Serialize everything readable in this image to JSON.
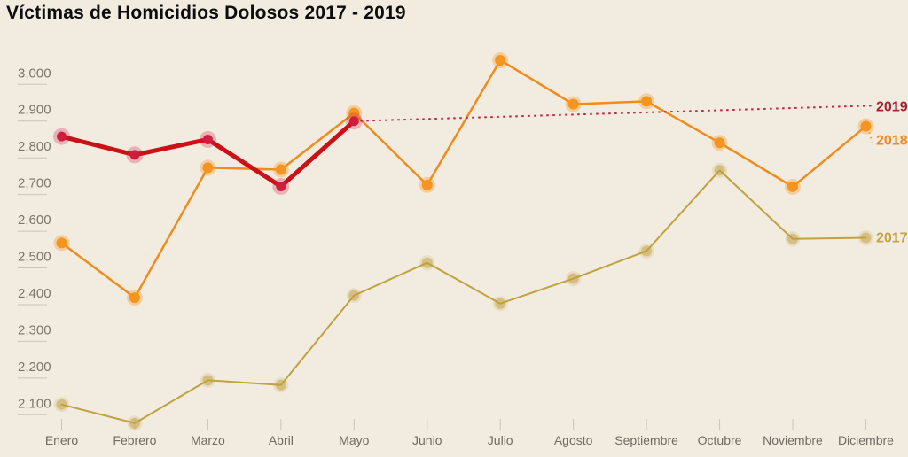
{
  "title": "Víctimas de Homicidios Dolosos 2017 - 2019",
  "colors": {
    "background": "#f1ebe0",
    "title_text": "#0d0d0d",
    "axis_text": "#7b766c",
    "tick_line": "#cbc5b8"
  },
  "chart_data": {
    "type": "line",
    "title": "Víctimas de Homicidios Dolosos 2017 - 2019",
    "xlabel": "",
    "ylabel": "",
    "grid": "tick-stubs-only",
    "legend_position": "line-end-labels-right",
    "categories": [
      "Enero",
      "Febrero",
      "Marzo",
      "Abril",
      "Mayo",
      "Junio",
      "Julio",
      "Agosto",
      "Septiembre",
      "Octubre",
      "Noviembre",
      "Diciembre"
    ],
    "y_axis": {
      "range": [
        2050,
        3080
      ],
      "ticks": [
        {
          "value": 3000,
          "label": "3,000"
        },
        {
          "value": 2900,
          "label": "2,900"
        },
        {
          "value": 2800,
          "label": "2,800"
        },
        {
          "value": 2700,
          "label": "2,700"
        },
        {
          "value": 2600,
          "label": "2,600"
        },
        {
          "value": 2500,
          "label": "2,500"
        },
        {
          "value": 2400,
          "label": "2,400"
        },
        {
          "value": 2300,
          "label": "2,300"
        },
        {
          "value": 2200,
          "label": "2,200"
        },
        {
          "value": 2100,
          "label": "2,100"
        }
      ]
    },
    "series": [
      {
        "name": "2017",
        "line_color": "#c0a23f",
        "marker_color": "#c0a23f",
        "label_color": "#c2a443",
        "line_width": 2,
        "marker_style": "soft",
        "values": [
          2128,
          2077,
          2194,
          2181,
          2425,
          2514,
          2403,
          2471,
          2546,
          2766,
          2579,
          2582
        ]
      },
      {
        "name": "2018",
        "line_color": "#f08c1d",
        "marker_color": "#f5941f",
        "label_color": "#ee8c1c",
        "line_width": 2.5,
        "marker_style": "solid",
        "values": [
          2568,
          2419,
          2773,
          2768,
          2922,
          2726,
          3066,
          2946,
          2954,
          2841,
          2721,
          2886
        ]
      },
      {
        "name": "2019",
        "line_color": "#cb1016",
        "marker_color": "#d01f3e",
        "label_color": "#a8202e",
        "line_width": 5,
        "marker_style": "halo",
        "values": [
          2858,
          2808,
          2850,
          2722,
          2900,
          null,
          null,
          null,
          null,
          null,
          null,
          null
        ]
      }
    ],
    "annotations": {
      "projection_2019": {
        "series": "2019",
        "style": "dotted",
        "color": "#c2203e",
        "from_month": "Mayo",
        "from_value": 2900,
        "to_month": "Diciembre",
        "to_value": 2942
      },
      "label_leader_2018": {
        "series": "2018",
        "style": "dotted",
        "from_month": "Diciembre",
        "from_value": 2886
      },
      "end_labels": [
        {
          "series": "2019",
          "text": "2019",
          "at_value": 2942
        },
        {
          "series": "2018",
          "text": "2018",
          "at_value": 2886
        },
        {
          "series": "2017",
          "text": "2017",
          "at_value": 2582
        }
      ]
    }
  }
}
